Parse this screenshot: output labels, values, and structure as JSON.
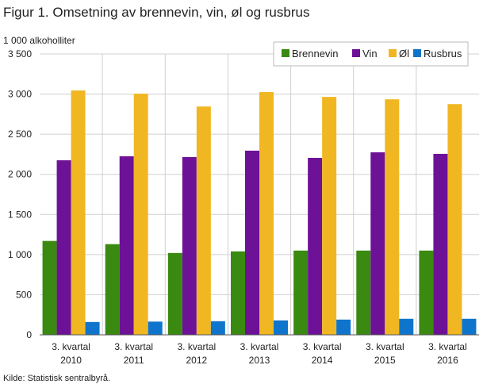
{
  "title": "Figur 1. Omsetning av brennevin, vin, øl og rusbrus",
  "unit_label": "1 000 alkoholliter",
  "source": "Kilde: Statistisk sentralbyrå.",
  "chart_data": {
    "type": "bar",
    "title": "Figur 1. Omsetning av brennevin, vin, øl og rusbrus",
    "ylabel": "1 000 alkoholliter",
    "ylim": [
      0,
      3500
    ],
    "yticks": [
      0,
      500,
      1000,
      1500,
      2000,
      2500,
      3000,
      3500
    ],
    "ytick_labels": [
      "0",
      "500",
      "1 000",
      "1 500",
      "2 000",
      "2 500",
      "3 000",
      "3 500"
    ],
    "grid": true,
    "legend_position": "top-right",
    "categories": [
      [
        "3. kvartal",
        "2010"
      ],
      [
        "3. kvartal",
        "2011"
      ],
      [
        "3. kvartal",
        "2012"
      ],
      [
        "3. kvartal",
        "2013"
      ],
      [
        "3. kvartal",
        "2014"
      ],
      [
        "3. kvartal",
        "2015"
      ],
      [
        "3. kvartal",
        "2016"
      ]
    ],
    "series": [
      {
        "name": "Brennevin",
        "color": "#3a8a11",
        "values": [
          1170,
          1130,
          1020,
          1040,
          1050,
          1050,
          1050
        ]
      },
      {
        "name": "Vin",
        "color": "#6d1197",
        "values": [
          2175,
          2225,
          2215,
          2295,
          2205,
          2275,
          2255
        ]
      },
      {
        "name": "Øl",
        "color": "#f0b722",
        "values": [
          3045,
          3005,
          2845,
          3025,
          2965,
          2935,
          2875
        ]
      },
      {
        "name": "Rusbrus",
        "color": "#0f75cc",
        "values": [
          160,
          165,
          170,
          180,
          190,
          200,
          200
        ]
      }
    ]
  }
}
